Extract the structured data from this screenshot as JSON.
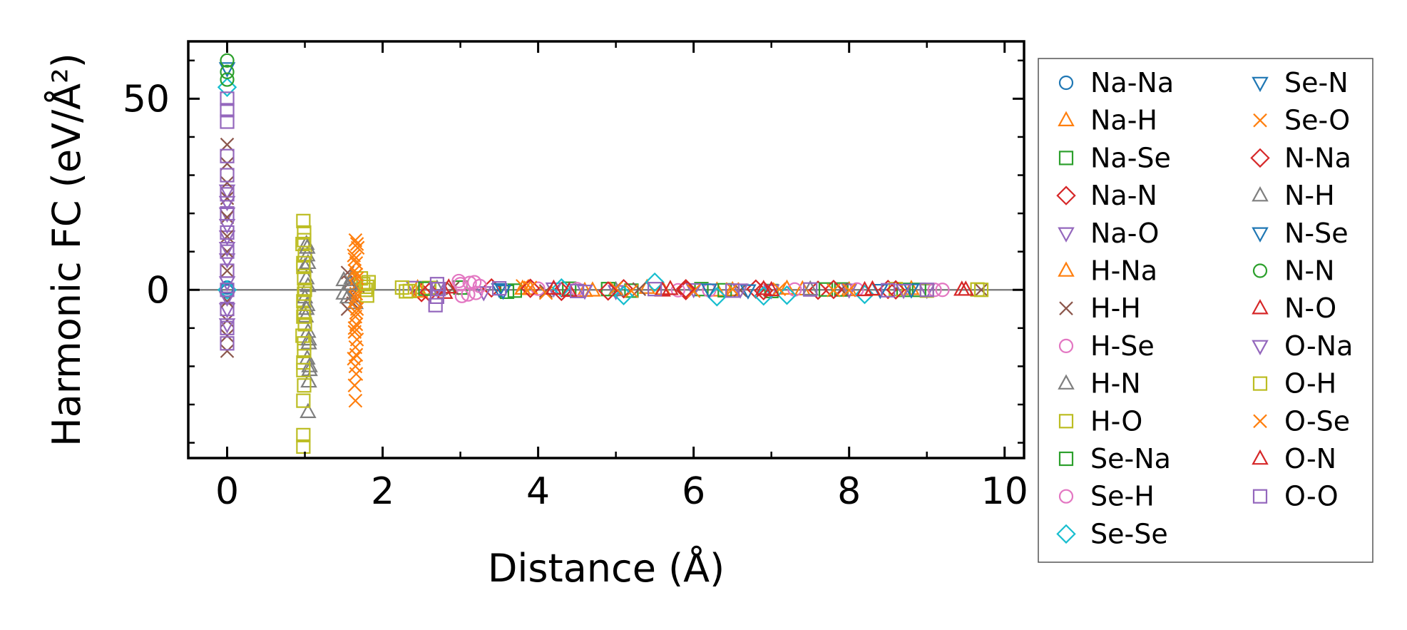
{
  "chart_data": {
    "type": "scatter",
    "title": "",
    "xlabel": "Distance (Å)",
    "ylabel": "Harmonic FC (eV/Å²)",
    "xlim": [
      -0.5,
      10.25
    ],
    "ylim": [
      -44,
      65
    ],
    "xticks": [
      0,
      2,
      4,
      6,
      8,
      10
    ],
    "yticks": [
      0,
      50
    ],
    "legend_position": "right, outside plot",
    "reference_line_y": 0,
    "series": [
      {
        "name": "Na-Na",
        "marker": "circle",
        "color": "#1f77b4",
        "points": [
          [
            0,
            0
          ],
          [
            0,
            0.6
          ],
          [
            0,
            -0.4
          ]
        ]
      },
      {
        "name": "Na-H",
        "marker": "triangle-up",
        "color": "#ff7f0e",
        "points": [
          [
            2.45,
            0.4
          ],
          [
            3.9,
            0.2
          ],
          [
            4.6,
            -0.3
          ],
          [
            5.4,
            0.5
          ],
          [
            6.3,
            -0.2
          ],
          [
            7.2,
            0.3
          ],
          [
            8.0,
            -0.1
          ],
          [
            8.8,
            0.2
          ]
        ]
      },
      {
        "name": "Na-Se",
        "marker": "square",
        "color": "#2ca02c",
        "points": [
          [
            3.0,
            0.6
          ],
          [
            3.6,
            -0.5
          ],
          [
            4.4,
            0.3
          ],
          [
            5.2,
            -0.2
          ],
          [
            6.1,
            0.2
          ],
          [
            7.0,
            -0.3
          ],
          [
            7.9,
            0.1
          ],
          [
            8.7,
            0.0
          ]
        ]
      },
      {
        "name": "Na-N",
        "marker": "diamond",
        "color": "#d62728",
        "points": [
          [
            2.5,
            -0.7
          ],
          [
            3.4,
            0.5
          ],
          [
            4.3,
            -0.4
          ],
          [
            5.1,
            0.3
          ],
          [
            5.9,
            -0.2
          ],
          [
            6.8,
            0.2
          ],
          [
            7.6,
            -0.1
          ],
          [
            8.5,
            0.1
          ]
        ]
      },
      {
        "name": "Na-O",
        "marker": "triangle-down",
        "color": "#9467bd",
        "points": [
          [
            0,
            26
          ],
          [
            0,
            20
          ],
          [
            0,
            14
          ],
          [
            0,
            8
          ],
          [
            0,
            2
          ],
          [
            0,
            -5
          ],
          [
            2.4,
            0.8
          ],
          [
            3.3,
            -0.6
          ],
          [
            4.2,
            0.4
          ],
          [
            5.0,
            -0.3
          ],
          [
            6.0,
            0.2
          ],
          [
            7.0,
            -0.1
          ],
          [
            8.0,
            0.1
          ],
          [
            9.0,
            0.0
          ]
        ]
      },
      {
        "name": "H-Na",
        "marker": "triangle-up",
        "color": "#ff7f0e",
        "points": [
          [
            2.48,
            -0.5
          ],
          [
            3.8,
            0.3
          ],
          [
            4.7,
            -0.2
          ],
          [
            5.6,
            0.2
          ],
          [
            6.5,
            -0.1
          ],
          [
            7.4,
            0.1
          ],
          [
            8.3,
            0.0
          ]
        ]
      },
      {
        "name": "H-H",
        "marker": "x",
        "color": "#8c564b",
        "points": [
          [
            0,
            38
          ],
          [
            0,
            33
          ],
          [
            0,
            28
          ],
          [
            0,
            24
          ],
          [
            0,
            19
          ],
          [
            0,
            14
          ],
          [
            0,
            10
          ],
          [
            0,
            5
          ],
          [
            0,
            -3
          ],
          [
            0,
            -8
          ],
          [
            0,
            -12
          ],
          [
            0,
            -16
          ],
          [
            1.55,
            4.5
          ],
          [
            1.58,
            2.0
          ],
          [
            1.6,
            -1.5
          ],
          [
            1.62,
            -3.5
          ],
          [
            1.55,
            -5
          ],
          [
            1.68,
            1.0
          ],
          [
            2.9,
            0.4
          ],
          [
            4.1,
            -0.3
          ],
          [
            5.3,
            0.2
          ],
          [
            6.6,
            -0.1
          ],
          [
            7.9,
            0.1
          ],
          [
            9.7,
            0.0
          ]
        ]
      },
      {
        "name": "H-Se",
        "marker": "circle",
        "color": "#e377c2",
        "points": [
          [
            2.98,
            2.3
          ],
          [
            3.02,
            -1.6
          ],
          [
            3.12,
            1.8
          ],
          [
            3.2,
            -0.8
          ],
          [
            3.25,
            1.0
          ],
          [
            4.5,
            0.2
          ],
          [
            6.2,
            -0.1
          ],
          [
            8.1,
            0.1
          ],
          [
            9.2,
            0.0
          ]
        ]
      },
      {
        "name": "H-N",
        "marker": "triangle-up",
        "color": "#7f7f7f",
        "points": [
          [
            1.02,
            12
          ],
          [
            1.03,
            9
          ],
          [
            1.0,
            6
          ],
          [
            1.02,
            3
          ],
          [
            1.04,
            1
          ],
          [
            1.0,
            -2
          ],
          [
            1.03,
            -4
          ],
          [
            1.01,
            -7
          ],
          [
            1.04,
            -11
          ],
          [
            1.05,
            -14
          ],
          [
            1.03,
            -18
          ],
          [
            1.06,
            -21
          ],
          [
            1.05,
            -24
          ],
          [
            1.04,
            -32
          ],
          [
            1.5,
            2.5
          ],
          [
            1.55,
            -2.0
          ],
          [
            1.6,
            3.0
          ],
          [
            1.65,
            -3.5
          ],
          [
            2.7,
            0.3
          ],
          [
            5.0,
            -0.1
          ],
          [
            7.5,
            0.1
          ]
        ]
      },
      {
        "name": "H-O",
        "marker": "square",
        "color": "#bcbd22",
        "points": [
          [
            0.98,
            18
          ],
          [
            0.99,
            15
          ],
          [
            0.97,
            12
          ],
          [
            1.0,
            9
          ],
          [
            0.98,
            6
          ],
          [
            0.99,
            3
          ],
          [
            1.0,
            0
          ],
          [
            0.98,
            -3
          ],
          [
            0.99,
            -6
          ],
          [
            1.0,
            -9
          ],
          [
            0.97,
            -12
          ],
          [
            0.99,
            -16
          ],
          [
            0.98,
            -19
          ],
          [
            0.99,
            -25
          ],
          [
            0.98,
            -29
          ],
          [
            0.98,
            -38
          ],
          [
            0.98,
            -41
          ],
          [
            1.72,
            3.0
          ],
          [
            1.75,
            1.5
          ],
          [
            1.78,
            0
          ],
          [
            1.8,
            -1.5
          ],
          [
            1.82,
            2.0
          ],
          [
            2.25,
            0.6
          ],
          [
            2.3,
            -0.4
          ],
          [
            2.6,
            0.5
          ],
          [
            8.6,
            0.2
          ],
          [
            9.0,
            -0.2
          ],
          [
            9.65,
            0.1
          ]
        ]
      },
      {
        "name": "Se-Na",
        "marker": "square",
        "color": "#2ca02c",
        "points": [
          [
            2.55,
            0.3
          ],
          [
            3.7,
            -0.2
          ],
          [
            4.9,
            0.2
          ],
          [
            6.4,
            -0.1
          ],
          [
            7.7,
            0.1
          ],
          [
            8.9,
            0.0
          ]
        ]
      },
      {
        "name": "Se-H",
        "marker": "circle",
        "color": "#e377c2",
        "points": [
          [
            3.0,
            1.5
          ],
          [
            3.1,
            -1.2
          ],
          [
            3.18,
            2.0
          ],
          [
            4.0,
            0.3
          ],
          [
            5.8,
            -0.1
          ],
          [
            7.3,
            0.1
          ],
          [
            9.1,
            0.0
          ]
        ]
      },
      {
        "name": "Se-Se",
        "marker": "diamond",
        "color": "#17becf",
        "points": [
          [
            0,
            53
          ],
          [
            0,
            0
          ],
          [
            5.1,
            -1.5
          ],
          [
            5.5,
            2.0
          ],
          [
            6.3,
            -1.8
          ],
          [
            6.9,
            -1.6
          ],
          [
            7.2,
            -1.4
          ],
          [
            8.2,
            -1.2
          ],
          [
            4.3,
            0.5
          ]
        ]
      },
      {
        "name": "Se-N",
        "marker": "triangle-down",
        "color": "#1f77b4",
        "points": [
          [
            0,
            58
          ],
          [
            3.5,
            0.2
          ],
          [
            6.7,
            -0.1
          ],
          [
            8.8,
            0.1
          ]
        ]
      },
      {
        "name": "Se-O",
        "marker": "x",
        "color": "#ff7f0e",
        "points": [
          [
            1.65,
            13
          ],
          [
            1.68,
            11
          ],
          [
            1.63,
            9
          ],
          [
            1.66,
            7
          ],
          [
            1.64,
            5
          ],
          [
            1.67,
            3
          ],
          [
            1.65,
            1
          ],
          [
            1.66,
            -1
          ],
          [
            1.64,
            -3
          ],
          [
            1.67,
            -5
          ],
          [
            1.65,
            -7
          ],
          [
            1.66,
            -9
          ],
          [
            1.64,
            -11
          ],
          [
            1.67,
            -13
          ],
          [
            1.65,
            -15
          ],
          [
            1.63,
            -18
          ],
          [
            1.66,
            -22
          ],
          [
            1.64,
            -25
          ],
          [
            1.65,
            -29
          ],
          [
            3.8,
            1.0
          ],
          [
            4.1,
            -0.8
          ],
          [
            5.0,
            0.4
          ],
          [
            6.0,
            -0.3
          ],
          [
            7.1,
            0.2
          ],
          [
            8.0,
            -0.1
          ]
        ]
      },
      {
        "name": "N-Na",
        "marker": "diamond",
        "color": "#d62728",
        "points": [
          [
            2.6,
            -0.6
          ],
          [
            3.9,
            0.4
          ],
          [
            4.9,
            -0.3
          ],
          [
            5.9,
            0.3
          ],
          [
            6.9,
            -0.2
          ],
          [
            7.8,
            0.1
          ],
          [
            8.6,
            0.0
          ]
        ]
      },
      {
        "name": "N-H",
        "marker": "triangle-up",
        "color": "#7f7f7f",
        "points": [
          [
            1.03,
            11
          ],
          [
            1.04,
            7
          ],
          [
            1.02,
            -5
          ],
          [
            1.05,
            -13
          ],
          [
            1.06,
            -20
          ],
          [
            1.5,
            -1.0
          ],
          [
            1.58,
            1.5
          ]
        ]
      },
      {
        "name": "N-Se",
        "marker": "triangle-down",
        "color": "#1f77b4",
        "points": [
          [
            3.55,
            -0.2
          ],
          [
            6.2,
            0.1
          ],
          [
            8.4,
            0.0
          ]
        ]
      },
      {
        "name": "N-N",
        "marker": "circle",
        "color": "#2ca02c",
        "points": [
          [
            0,
            60
          ],
          [
            0,
            57
          ],
          [
            0,
            55
          ]
        ]
      },
      {
        "name": "N-O",
        "marker": "triangle-up",
        "color": "#d62728",
        "points": [
          [
            2.8,
            -0.8
          ],
          [
            4.2,
            0.3
          ],
          [
            5.6,
            -0.2
          ],
          [
            6.9,
            0.2
          ],
          [
            8.2,
            -0.1
          ],
          [
            9.45,
            0.0
          ]
        ]
      },
      {
        "name": "O-Na",
        "marker": "triangle-down",
        "color": "#9467bd",
        "points": [
          [
            0,
            23
          ],
          [
            0,
            17
          ],
          [
            0,
            11
          ],
          [
            0,
            -2
          ],
          [
            0,
            -9
          ],
          [
            2.7,
            0.5
          ],
          [
            4.6,
            -0.2
          ],
          [
            6.6,
            0.1
          ],
          [
            8.7,
            0.0
          ]
        ]
      },
      {
        "name": "O-H",
        "marker": "square",
        "color": "#bcbd22",
        "points": [
          [
            0.99,
            13
          ],
          [
            0.98,
            7
          ],
          [
            0.99,
            -1
          ],
          [
            0.98,
            -7
          ],
          [
            0.99,
            -14
          ],
          [
            0.98,
            -21
          ],
          [
            1.8,
            0.8
          ],
          [
            2.35,
            -0.3
          ],
          [
            9.7,
            0.0
          ]
        ]
      },
      {
        "name": "O-Se",
        "marker": "x",
        "color": "#ff7f0e",
        "points": [
          [
            1.67,
            12
          ],
          [
            1.64,
            8
          ],
          [
            1.66,
            4
          ],
          [
            1.65,
            -2
          ],
          [
            1.66,
            -6
          ],
          [
            1.64,
            -10
          ],
          [
            1.66,
            -17
          ],
          [
            1.65,
            -20
          ],
          [
            3.9,
            0.6
          ],
          [
            5.2,
            -0.3
          ],
          [
            6.5,
            0.2
          ],
          [
            7.8,
            -0.1
          ]
        ]
      },
      {
        "name": "O-N",
        "marker": "triangle-up",
        "color": "#d62728",
        "points": [
          [
            2.85,
            0.6
          ],
          [
            4.4,
            -0.3
          ],
          [
            5.7,
            0.2
          ],
          [
            7.0,
            -0.1
          ],
          [
            8.3,
            0.1
          ],
          [
            9.5,
            0.0
          ]
        ]
      },
      {
        "name": "O-O",
        "marker": "square",
        "color": "#9467bd",
        "points": [
          [
            0,
            50
          ],
          [
            0,
            47
          ],
          [
            0,
            44
          ],
          [
            0,
            35
          ],
          [
            0,
            30
          ],
          [
            0,
            25
          ],
          [
            0,
            20
          ],
          [
            0,
            15
          ],
          [
            0,
            10
          ],
          [
            0,
            5
          ],
          [
            0,
            0
          ],
          [
            0,
            -5
          ],
          [
            0,
            -10
          ],
          [
            0,
            -14
          ],
          [
            2.7,
            1.5
          ],
          [
            2.72,
            0.2
          ],
          [
            2.7,
            -1.8
          ],
          [
            2.68,
            -4.0
          ],
          [
            3.5,
            0.4
          ],
          [
            4.5,
            -0.3
          ],
          [
            5.5,
            0.2
          ],
          [
            6.5,
            -0.2
          ],
          [
            7.5,
            0.1
          ],
          [
            8.5,
            -0.1
          ],
          [
            9.0,
            0.0
          ]
        ]
      }
    ]
  }
}
